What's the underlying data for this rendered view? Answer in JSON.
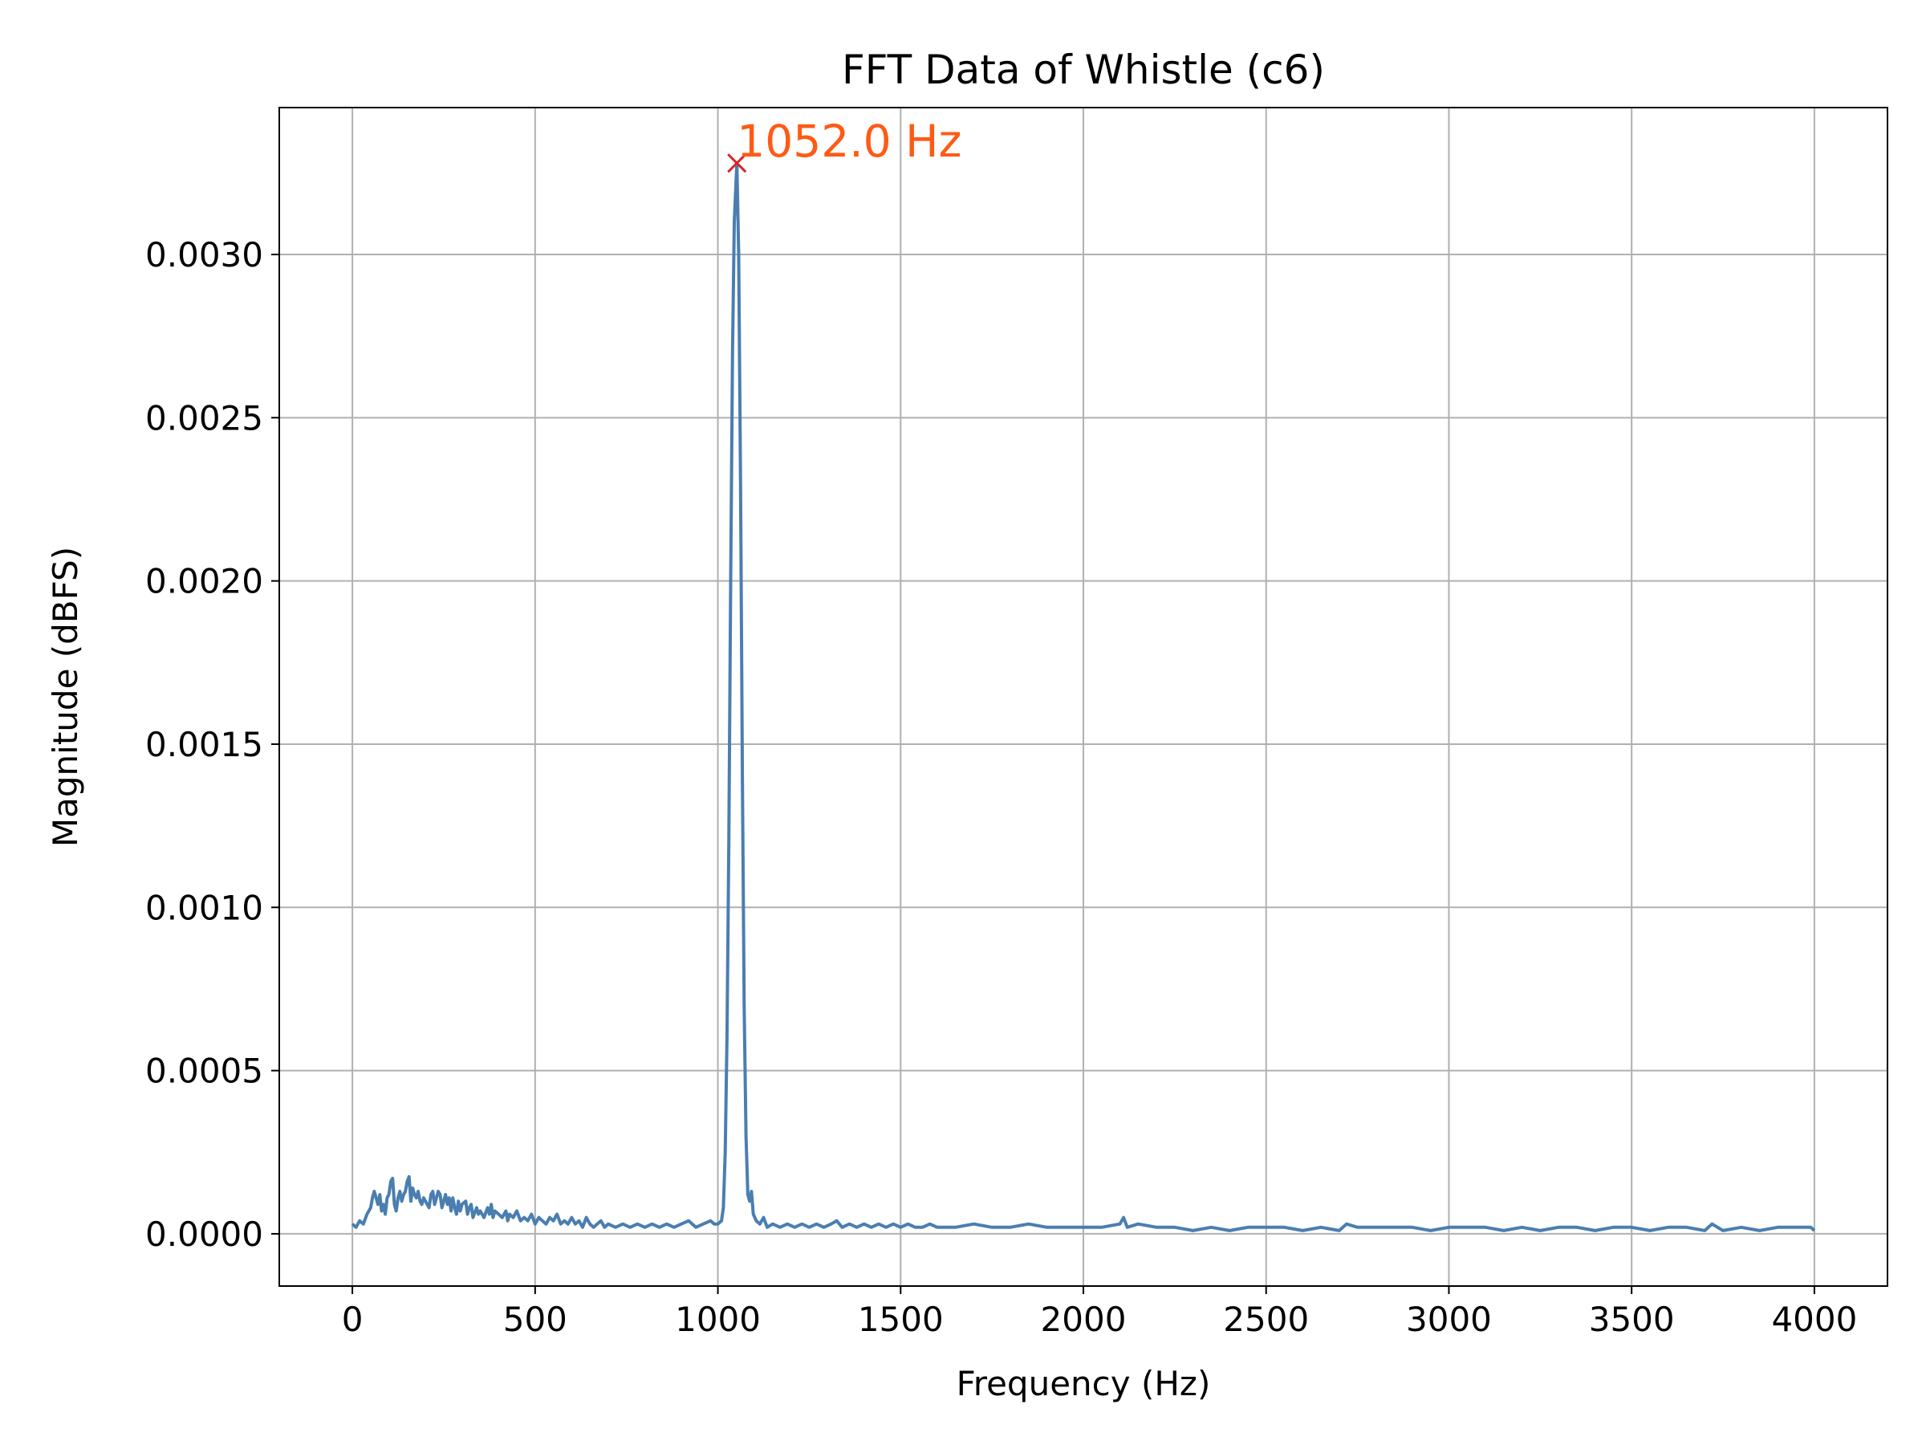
{
  "chart_data": {
    "type": "line",
    "title": "FFT Data of Whistle (c6)",
    "xlabel": "Frequency (Hz)",
    "ylabel": "Magnitude (dBFS)",
    "xlim": [
      -200,
      4200
    ],
    "ylim": [
      -0.00016,
      0.00345
    ],
    "x_ticks": [
      0,
      500,
      1000,
      1500,
      2000,
      2500,
      3000,
      3500,
      4000
    ],
    "x_tick_labels": [
      "0",
      "500",
      "1000",
      "1500",
      "2000",
      "2500",
      "3000",
      "3500",
      "4000"
    ],
    "y_ticks": [
      0.0,
      0.0005,
      0.001,
      0.0015,
      0.002,
      0.0025,
      0.003
    ],
    "y_tick_labels": [
      "0.0000",
      "0.0005",
      "0.0010",
      "0.0015",
      "0.0020",
      "0.0025",
      "0.0030"
    ],
    "grid": true,
    "series": [
      {
        "color": "#4a7eb0",
        "points": [
          [
            0,
            3e-05
          ],
          [
            10,
            2e-05
          ],
          [
            20,
            4e-05
          ],
          [
            30,
            3e-05
          ],
          [
            40,
            6e-05
          ],
          [
            50,
            8e-05
          ],
          [
            55,
            0.00011
          ],
          [
            60,
            0.00013
          ],
          [
            65,
            0.00011
          ],
          [
            70,
            9e-05
          ],
          [
            75,
            0.00012
          ],
          [
            80,
            7e-05
          ],
          [
            85,
            9e-05
          ],
          [
            90,
            6e-05
          ],
          [
            95,
            0.00011
          ],
          [
            100,
            0.00012
          ],
          [
            105,
            0.00016
          ],
          [
            110,
            0.00017
          ],
          [
            115,
            9e-05
          ],
          [
            120,
            7e-05
          ],
          [
            125,
            0.00011
          ],
          [
            130,
            0.00013
          ],
          [
            135,
            0.0001
          ],
          [
            140,
            0.00012
          ],
          [
            145,
            0.00013
          ],
          [
            150,
            0.00016
          ],
          [
            155,
            0.000175
          ],
          [
            160,
            0.0001
          ],
          [
            165,
            0.00014
          ],
          [
            170,
            0.00012
          ],
          [
            175,
            0.00011
          ],
          [
            180,
            0.00013
          ],
          [
            185,
            0.0001
          ],
          [
            190,
            9e-05
          ],
          [
            195,
            0.00011
          ],
          [
            200,
            0.0001
          ],
          [
            210,
            8e-05
          ],
          [
            215,
            0.00012
          ],
          [
            220,
            0.00013
          ],
          [
            225,
            9e-05
          ],
          [
            230,
            0.00011
          ],
          [
            235,
            0.00013
          ],
          [
            240,
            0.00012
          ],
          [
            245,
            8e-05
          ],
          [
            250,
            0.0001
          ],
          [
            255,
            0.00012
          ],
          [
            260,
            9e-05
          ],
          [
            265,
            0.00011
          ],
          [
            270,
            7e-05
          ],
          [
            275,
            0.00011
          ],
          [
            280,
            8e-05
          ],
          [
            285,
            6e-05
          ],
          [
            290,
            0.0001
          ],
          [
            295,
            7e-05
          ],
          [
            300,
            9e-05
          ],
          [
            310,
            0.0001
          ],
          [
            315,
            6e-05
          ],
          [
            320,
            8e-05
          ],
          [
            325,
            9e-05
          ],
          [
            330,
            5e-05
          ],
          [
            340,
            8e-05
          ],
          [
            345,
            6e-05
          ],
          [
            350,
            7e-05
          ],
          [
            360,
            5e-05
          ],
          [
            370,
            8e-05
          ],
          [
            375,
            6e-05
          ],
          [
            380,
            9e-05
          ],
          [
            385,
            5e-05
          ],
          [
            390,
            7e-05
          ],
          [
            400,
            6e-05
          ],
          [
            410,
            5e-05
          ],
          [
            420,
            7e-05
          ],
          [
            425,
            4e-05
          ],
          [
            430,
            6e-05
          ],
          [
            440,
            5e-05
          ],
          [
            450,
            7e-05
          ],
          [
            460,
            4e-05
          ],
          [
            470,
            5e-05
          ],
          [
            480,
            4e-05
          ],
          [
            490,
            6e-05
          ],
          [
            500,
            3e-05
          ],
          [
            510,
            5e-05
          ],
          [
            520,
            4e-05
          ],
          [
            530,
            3e-05
          ],
          [
            540,
            5e-05
          ],
          [
            550,
            4e-05
          ],
          [
            560,
            6e-05
          ],
          [
            570,
            3e-05
          ],
          [
            580,
            4e-05
          ],
          [
            590,
            3e-05
          ],
          [
            600,
            5e-05
          ],
          [
            610,
            3e-05
          ],
          [
            620,
            4e-05
          ],
          [
            630,
            2e-05
          ],
          [
            640,
            5e-05
          ],
          [
            650,
            3e-05
          ],
          [
            660,
            2e-05
          ],
          [
            670,
            3e-05
          ],
          [
            680,
            4e-05
          ],
          [
            690,
            2e-05
          ],
          [
            700,
            3e-05
          ],
          [
            720,
            2e-05
          ],
          [
            740,
            3e-05
          ],
          [
            760,
            2e-05
          ],
          [
            780,
            3e-05
          ],
          [
            800,
            2e-05
          ],
          [
            820,
            3e-05
          ],
          [
            840,
            2e-05
          ],
          [
            860,
            3e-05
          ],
          [
            880,
            2e-05
          ],
          [
            900,
            3e-05
          ],
          [
            920,
            4e-05
          ],
          [
            940,
            2e-05
          ],
          [
            960,
            3e-05
          ],
          [
            980,
            4e-05
          ],
          [
            990,
            3e-05
          ],
          [
            1000,
            3e-05
          ],
          [
            1010,
            4e-05
          ],
          [
            1015,
            8e-05
          ],
          [
            1020,
            0.00025
          ],
          [
            1025,
            0.0006
          ],
          [
            1030,
            0.0012
          ],
          [
            1035,
            0.002
          ],
          [
            1040,
            0.0027
          ],
          [
            1045,
            0.0031
          ],
          [
            1052,
            0.00328
          ],
          [
            1057,
            0.003
          ],
          [
            1062,
            0.0023
          ],
          [
            1067,
            0.0014
          ],
          [
            1072,
            0.0007
          ],
          [
            1077,
            0.0003
          ],
          [
            1082,
            0.00012
          ],
          [
            1087,
            0.0001
          ],
          [
            1092,
            0.00013
          ],
          [
            1097,
            6e-05
          ],
          [
            1105,
            4e-05
          ],
          [
            1115,
            3e-05
          ],
          [
            1125,
            5e-05
          ],
          [
            1135,
            2e-05
          ],
          [
            1150,
            3e-05
          ],
          [
            1170,
            2e-05
          ],
          [
            1190,
            3e-05
          ],
          [
            1210,
            2e-05
          ],
          [
            1230,
            3e-05
          ],
          [
            1250,
            2e-05
          ],
          [
            1270,
            3e-05
          ],
          [
            1290,
            2e-05
          ],
          [
            1310,
            3e-05
          ],
          [
            1325,
            4e-05
          ],
          [
            1340,
            2e-05
          ],
          [
            1360,
            3e-05
          ],
          [
            1380,
            2e-05
          ],
          [
            1400,
            3e-05
          ],
          [
            1420,
            2e-05
          ],
          [
            1440,
            3e-05
          ],
          [
            1460,
            2e-05
          ],
          [
            1480,
            3e-05
          ],
          [
            1500,
            2e-05
          ],
          [
            1520,
            3e-05
          ],
          [
            1540,
            2e-05
          ],
          [
            1560,
            2e-05
          ],
          [
            1580,
            3e-05
          ],
          [
            1600,
            2e-05
          ],
          [
            1650,
            2e-05
          ],
          [
            1700,
            3e-05
          ],
          [
            1750,
            2e-05
          ],
          [
            1800,
            2e-05
          ],
          [
            1850,
            3e-05
          ],
          [
            1900,
            2e-05
          ],
          [
            1950,
            2e-05
          ],
          [
            2000,
            2e-05
          ],
          [
            2050,
            2e-05
          ],
          [
            2100,
            3e-05
          ],
          [
            2110,
            5e-05
          ],
          [
            2120,
            2e-05
          ],
          [
            2150,
            3e-05
          ],
          [
            2200,
            2e-05
          ],
          [
            2250,
            2e-05
          ],
          [
            2300,
            1e-05
          ],
          [
            2350,
            2e-05
          ],
          [
            2400,
            1e-05
          ],
          [
            2450,
            2e-05
          ],
          [
            2500,
            2e-05
          ],
          [
            2550,
            2e-05
          ],
          [
            2600,
            1e-05
          ],
          [
            2650,
            2e-05
          ],
          [
            2700,
            1e-05
          ],
          [
            2720,
            3e-05
          ],
          [
            2750,
            2e-05
          ],
          [
            2800,
            2e-05
          ],
          [
            2850,
            2e-05
          ],
          [
            2900,
            2e-05
          ],
          [
            2950,
            1e-05
          ],
          [
            3000,
            2e-05
          ],
          [
            3050,
            2e-05
          ],
          [
            3100,
            2e-05
          ],
          [
            3150,
            1e-05
          ],
          [
            3200,
            2e-05
          ],
          [
            3250,
            1e-05
          ],
          [
            3300,
            2e-05
          ],
          [
            3350,
            2e-05
          ],
          [
            3400,
            1e-05
          ],
          [
            3450,
            2e-05
          ],
          [
            3500,
            2e-05
          ],
          [
            3550,
            1e-05
          ],
          [
            3600,
            2e-05
          ],
          [
            3650,
            2e-05
          ],
          [
            3700,
            1e-05
          ],
          [
            3720,
            3e-05
          ],
          [
            3750,
            1e-05
          ],
          [
            3800,
            2e-05
          ],
          [
            3850,
            1e-05
          ],
          [
            3900,
            2e-05
          ],
          [
            3950,
            2e-05
          ],
          [
            3990,
            2e-05
          ],
          [
            4000,
            1e-05
          ]
        ]
      }
    ],
    "peak": {
      "x": 1052.0,
      "y": 0.00328,
      "label": "1052.0 Hz",
      "marker": "x",
      "marker_color": "#d62728",
      "label_color": "#ff5a14"
    }
  }
}
